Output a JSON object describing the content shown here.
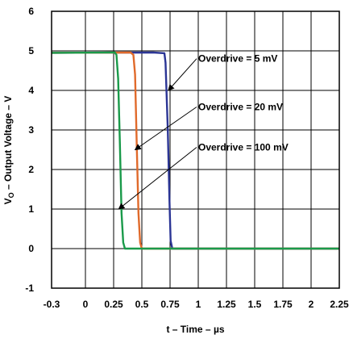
{
  "chart_data": {
    "type": "line",
    "title": "",
    "xlabel": "t – Time – µs",
    "ylabel_main": "V",
    "ylabel_sub": "O",
    "ylabel_rest": " – Output Voltage – V",
    "xlim": [
      -0.3,
      2.25
    ],
    "ylim": [
      -1,
      6
    ],
    "x_ticks": [
      -0.3,
      0,
      0.25,
      0.5,
      0.75,
      1,
      1.25,
      1.5,
      1.75,
      2,
      2.25
    ],
    "x_tick_labels": [
      "-0.3",
      "0",
      "0.25",
      "0.5",
      "0.75",
      "1",
      "1.25",
      "1.5",
      "1.75",
      "2",
      "2.25"
    ],
    "y_ticks": [
      -1,
      0,
      1,
      2,
      3,
      4,
      5,
      6
    ],
    "y_tick_labels": [
      "-1",
      "0",
      "1",
      "2",
      "3",
      "4",
      "5",
      "6"
    ],
    "grid": true,
    "legend": "none",
    "series": [
      {
        "name": "Overdrive = 5 mV",
        "color": "#2b3595",
        "x": [
          -0.3,
          0.6,
          0.7,
          0.71,
          0.73,
          0.745,
          0.755,
          0.77,
          2.25
        ],
        "y": [
          4.95,
          4.96,
          4.94,
          4.7,
          3.0,
          1.2,
          0.2,
          0.0,
          0.0
        ]
      },
      {
        "name": "Overdrive = 20 mV",
        "color": "#e06a2b",
        "x": [
          -0.3,
          0.4,
          0.425,
          0.44,
          0.455,
          0.47,
          0.485,
          0.5,
          2.25
        ],
        "y": [
          4.95,
          4.96,
          4.9,
          4.4,
          2.6,
          0.9,
          0.15,
          0.0,
          0.0
        ]
      },
      {
        "name": "Overdrive = 100 mV",
        "color": "#1a9a4a",
        "x": [
          -0.3,
          0.26,
          0.275,
          0.29,
          0.305,
          0.32,
          0.335,
          0.35,
          2.25
        ],
        "y": [
          4.95,
          4.96,
          4.9,
          4.3,
          2.7,
          0.9,
          0.15,
          0.0,
          0.0
        ]
      }
    ],
    "annotations": [
      {
        "text": "Overdrive = 5 mV",
        "label_x": 1.0,
        "label_y": 4.72,
        "arrow_x": 0.735,
        "arrow_y": 4.0
      },
      {
        "text": "Overdrive = 20 mV",
        "label_x": 1.0,
        "label_y": 3.5,
        "arrow_x": 0.44,
        "arrow_y": 2.5
      },
      {
        "text": "Overdrive = 100 mV",
        "label_x": 1.0,
        "label_y": 2.48,
        "arrow_x": 0.295,
        "arrow_y": 1.0
      }
    ]
  }
}
